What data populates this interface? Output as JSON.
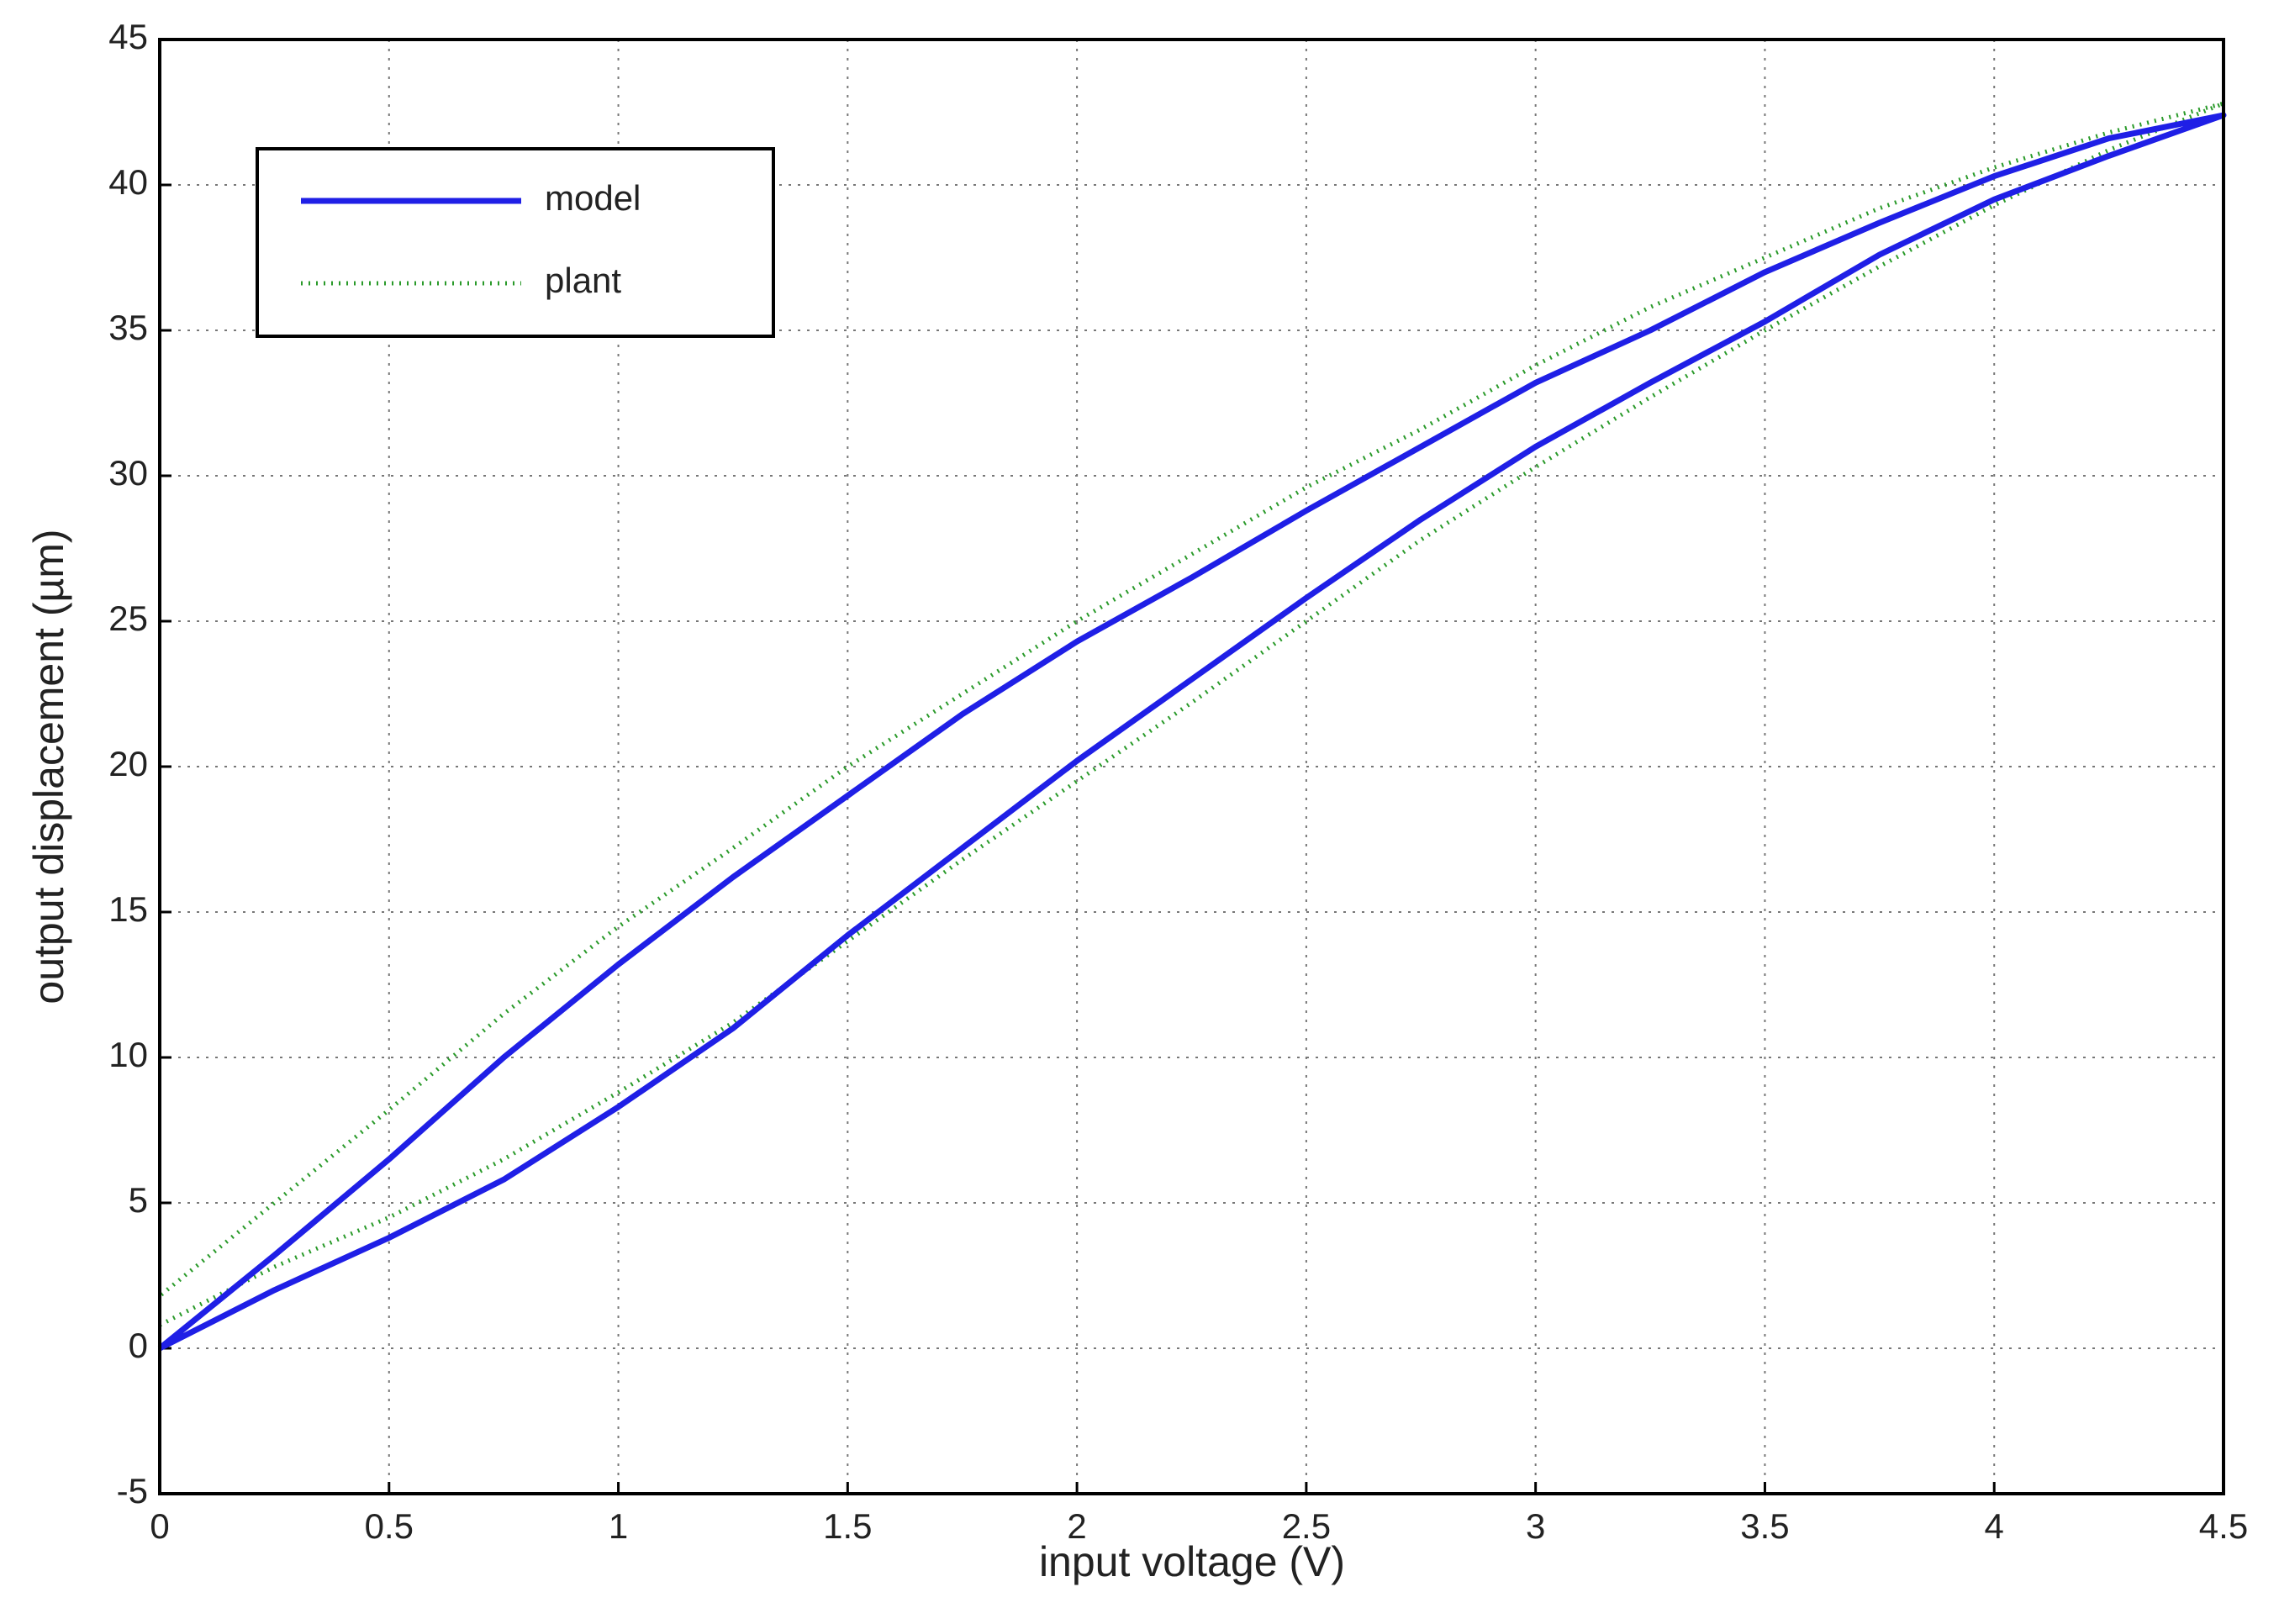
{
  "chart_data": {
    "type": "line",
    "xlabel": "input voltage (V)",
    "ylabel": "output displacement (µm)",
    "x": [
      0,
      0.25,
      0.5,
      0.75,
      1,
      1.25,
      1.5,
      1.75,
      2,
      2.25,
      2.5,
      2.75,
      3,
      3.25,
      3.5,
      3.75,
      4,
      4.25,
      4.5,
      4.25,
      4,
      3.75,
      3.5,
      3.25,
      3,
      2.75,
      2.5,
      2.25,
      2,
      1.75,
      1.5,
      1.25,
      1,
      0.75,
      0.5,
      0.25,
      0
    ],
    "series": [
      {
        "name": "model",
        "color": "#1f1fe6",
        "style": "solid",
        "values": [
          0,
          2,
          3.8,
          5.8,
          8.3,
          11,
          14.2,
          17.2,
          20.2,
          23,
          25.8,
          28.5,
          31,
          33.2,
          35.3,
          37.6,
          39.5,
          41,
          42.4,
          41.6,
          40.3,
          38.7,
          37,
          35,
          33.2,
          31,
          28.8,
          26.5,
          24.3,
          21.8,
          19,
          16.2,
          13.2,
          10,
          6.5,
          3.2,
          0
        ]
      },
      {
        "name": "plant",
        "color": "#2a9a2a",
        "style": "dotted",
        "values": [
          0.8,
          2.8,
          4.5,
          6.5,
          8.8,
          11.2,
          14,
          16.8,
          19.5,
          22.2,
          25,
          27.8,
          30.3,
          32.7,
          35,
          37.2,
          39.3,
          41.2,
          42.8,
          41.8,
          40.6,
          39.2,
          37.5,
          35.8,
          33.8,
          31.6,
          29.6,
          27.3,
          25,
          22.5,
          20,
          17.2,
          14.5,
          11.5,
          8.2,
          5,
          1.8
        ]
      }
    ],
    "xlim": [
      0,
      4.5
    ],
    "xticks": [
      0,
      0.5,
      1,
      1.5,
      2,
      2.5,
      3,
      3.5,
      4,
      4.5
    ],
    "ylim": [
      -5,
      45
    ],
    "yticks": [
      -5,
      0,
      5,
      10,
      15,
      20,
      25,
      30,
      35,
      40,
      45
    ],
    "grid": true,
    "legend": "upper left"
  }
}
